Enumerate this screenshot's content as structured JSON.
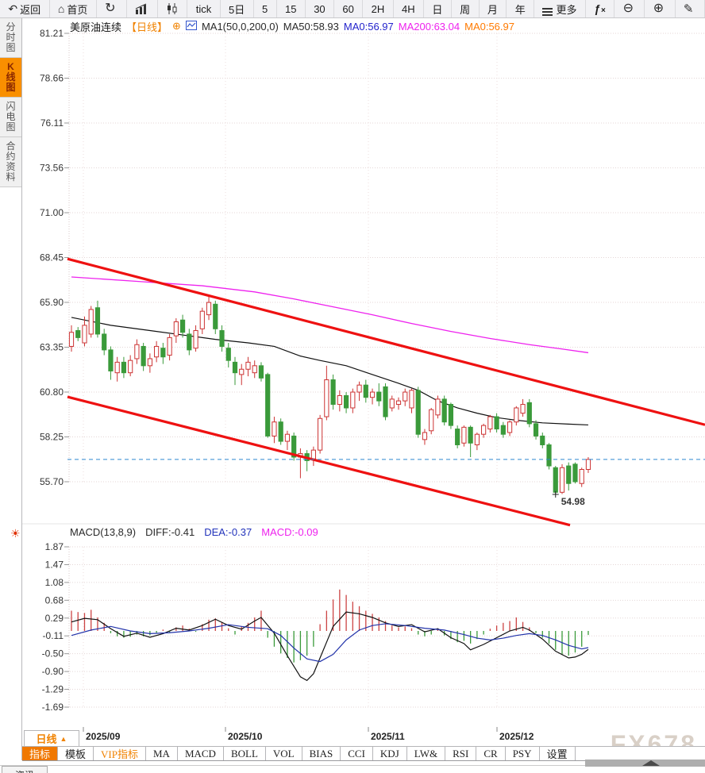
{
  "toolbar": {
    "items": [
      {
        "name": "back-button",
        "icon": "back-arrow-icon",
        "label": "返回"
      },
      {
        "name": "home-button",
        "icon": "home-icon",
        "label": "首页"
      },
      {
        "name": "refresh-button",
        "icon": "refresh-icon",
        "label": ""
      },
      {
        "name": "bar-chart-view-button",
        "icon": "bar-chart-icon",
        "label": ""
      },
      {
        "name": "candle-chart-view-button",
        "icon": "candle-chart-icon",
        "label": ""
      },
      {
        "name": "interval-tick",
        "icon": "",
        "label": "tick"
      },
      {
        "name": "interval-5day",
        "icon": "",
        "label": "5日"
      },
      {
        "name": "interval-5",
        "icon": "",
        "label": "5"
      },
      {
        "name": "interval-15",
        "icon": "",
        "label": "15"
      },
      {
        "name": "interval-30",
        "icon": "",
        "label": "30"
      },
      {
        "name": "interval-60",
        "icon": "",
        "label": "60"
      },
      {
        "name": "interval-2h",
        "icon": "",
        "label": "2H"
      },
      {
        "name": "interval-4h",
        "icon": "",
        "label": "4H"
      },
      {
        "name": "interval-day",
        "icon": "",
        "label": "日"
      },
      {
        "name": "interval-week",
        "icon": "",
        "label": "周"
      },
      {
        "name": "interval-month",
        "icon": "",
        "label": "月"
      },
      {
        "name": "interval-year",
        "icon": "",
        "label": "年"
      },
      {
        "name": "more-button",
        "icon": "menu-icon",
        "label": "更多"
      },
      {
        "name": "fx-indicator-button",
        "icon": "fx-icon",
        "label": ""
      },
      {
        "name": "zoom-out-button",
        "icon": "zoom-out-icon",
        "label": ""
      },
      {
        "name": "zoom-in-button",
        "icon": "zoom-in-icon",
        "label": ""
      },
      {
        "name": "draw-button",
        "icon": "pen-icon",
        "label": ""
      }
    ]
  },
  "sidebar": {
    "items": [
      {
        "label": "分时图",
        "active": false
      },
      {
        "label": "K线图",
        "active": true
      },
      {
        "label": "闪电图",
        "active": false
      },
      {
        "label": "合约资料",
        "active": false
      }
    ]
  },
  "chart_header": {
    "symbol": "美原油连续",
    "period_tag": "【日线】",
    "add_icon": "⊕",
    "ma_config": "MA1(50,0,200,0)",
    "ma50": "MA50:58.93",
    "ma0_blue": "MA0:56.97",
    "ma200": "MA200:63.04",
    "ma0_orange": "MA0:56.97"
  },
  "macd_header": {
    "title": "MACD(13,8,9)",
    "diff": "DIFF:-0.41",
    "dea": "DEA:-0.37",
    "macd": "MACD:-0.09"
  },
  "bottom": {
    "period_selector": "日线",
    "period_arrow": "▲",
    "tabs": [
      {
        "label": "指标",
        "active": true,
        "vip": false
      },
      {
        "label": "模板",
        "active": false,
        "vip": false
      },
      {
        "label": "VIP指标",
        "active": false,
        "vip": true
      },
      {
        "label": "MA",
        "active": false,
        "vip": false
      },
      {
        "label": "MACD",
        "active": false,
        "vip": false
      },
      {
        "label": "BOLL",
        "active": false,
        "vip": false
      },
      {
        "label": "VOL",
        "active": false,
        "vip": false
      },
      {
        "label": "BIAS",
        "active": false,
        "vip": false
      },
      {
        "label": "CCI",
        "active": false,
        "vip": false
      },
      {
        "label": "KDJ",
        "active": false,
        "vip": false
      },
      {
        "label": "LW&",
        "active": false,
        "vip": false
      },
      {
        "label": "RSI",
        "active": false,
        "vip": false
      },
      {
        "label": "CR",
        "active": false,
        "vip": false
      },
      {
        "label": "PSY",
        "active": false,
        "vip": false
      },
      {
        "label": "设置",
        "active": false,
        "vip": false
      }
    ],
    "partial_tab": "资讯",
    "watermark": "FX678"
  },
  "colors": {
    "up": "#cc3333",
    "down": "#3a9a3a",
    "ma50": "#111111",
    "ma200": "#ee22ee",
    "diff": "#111111",
    "dea": "#2233aa",
    "hist_pos": "#cc4444",
    "hist_neg": "#3a9a3a",
    "trend": "#ee1111",
    "price_line": "#2f86d0",
    "accent": "#f07800",
    "grid": "#e4d6d6",
    "grid_vert": "#ecdede",
    "axis_text": "#333333",
    "low_label": "#3a9a3a"
  },
  "chart_data": {
    "type": "candlestick+macd",
    "title": "美原油连续 日线 (US Crude Oil Continuous, Daily)",
    "y_ticks": [
      81.21,
      78.66,
      76.11,
      73.56,
      71.0,
      68.45,
      65.9,
      63.35,
      60.8,
      58.25,
      55.7
    ],
    "x_labels": [
      "2025/09",
      "2025/10",
      "2025/11",
      "2025/12"
    ],
    "current_price": 56.97,
    "low_marker": 54.98,
    "low_label": "54.98",
    "candles": [
      [
        63.4,
        64.6,
        63.1,
        64.2
      ],
      [
        64.3,
        64.5,
        63.7,
        63.9
      ],
      [
        63.6,
        65.1,
        63.4,
        64.6
      ],
      [
        64.1,
        65.7,
        63.9,
        65.5
      ],
      [
        65.6,
        66.0,
        63.9,
        64.1
      ],
      [
        64.1,
        64.4,
        62.9,
        63.2
      ],
      [
        63.2,
        63.4,
        61.5,
        62.0
      ],
      [
        61.9,
        62.8,
        61.4,
        62.5
      ],
      [
        62.5,
        62.8,
        61.6,
        61.9
      ],
      [
        61.9,
        62.9,
        61.7,
        62.6
      ],
      [
        62.7,
        63.8,
        62.4,
        63.5
      ],
      [
        63.4,
        63.6,
        62.0,
        62.3
      ],
      [
        62.3,
        63.0,
        61.9,
        62.7
      ],
      [
        62.8,
        63.7,
        62.5,
        63.4
      ],
      [
        63.3,
        63.6,
        62.4,
        62.8
      ],
      [
        62.9,
        64.1,
        62.6,
        63.9
      ],
      [
        64.0,
        65.0,
        63.6,
        64.8
      ],
      [
        64.9,
        65.2,
        63.9,
        64.2
      ],
      [
        64.1,
        64.4,
        62.9,
        63.2
      ],
      [
        63.3,
        64.6,
        63.1,
        64.3
      ],
      [
        64.4,
        65.6,
        64.1,
        65.4
      ],
      [
        65.2,
        66.3,
        64.9,
        65.9
      ],
      [
        65.8,
        66.0,
        64.1,
        64.4
      ],
      [
        64.3,
        64.6,
        63.1,
        63.4
      ],
      [
        63.3,
        63.6,
        62.2,
        62.6
      ],
      [
        62.5,
        62.8,
        61.2,
        61.9
      ],
      [
        61.8,
        62.4,
        61.2,
        62.1
      ],
      [
        62.1,
        62.8,
        61.7,
        62.5
      ],
      [
        61.9,
        62.6,
        61.6,
        62.3
      ],
      [
        62.3,
        62.5,
        61.4,
        61.6
      ],
      [
        61.8,
        61.9,
        58.2,
        58.3
      ],
      [
        58.3,
        59.4,
        57.9,
        59.1
      ],
      [
        59.1,
        59.3,
        57.8,
        58.0
      ],
      [
        58.0,
        58.6,
        57.5,
        58.4
      ],
      [
        58.3,
        58.5,
        56.9,
        57.1
      ],
      [
        57.1,
        57.6,
        55.9,
        57.3
      ],
      [
        57.3,
        57.5,
        56.3,
        56.9
      ],
      [
        57.0,
        57.7,
        56.6,
        57.5
      ],
      [
        57.5,
        59.5,
        57.3,
        59.3
      ],
      [
        59.4,
        62.3,
        59.2,
        61.5
      ],
      [
        61.5,
        61.8,
        59.8,
        60.1
      ],
      [
        60.1,
        60.9,
        59.7,
        60.6
      ],
      [
        60.6,
        60.8,
        59.6,
        59.9
      ],
      [
        59.9,
        61.0,
        59.6,
        60.8
      ],
      [
        60.8,
        61.4,
        60.3,
        61.2
      ],
      [
        61.2,
        61.5,
        60.2,
        60.5
      ],
      [
        60.5,
        61.0,
        60.1,
        60.8
      ],
      [
        60.8,
        61.3,
        60.0,
        60.3
      ],
      [
        61.1,
        61.3,
        59.2,
        59.4
      ],
      [
        59.9,
        60.6,
        59.7,
        60.4
      ],
      [
        60.1,
        60.5,
        59.8,
        60.3
      ],
      [
        60.3,
        61.0,
        60.0,
        60.8
      ],
      [
        59.9,
        61.0,
        59.6,
        60.9
      ],
      [
        60.9,
        61.1,
        58.2,
        58.4
      ],
      [
        58.1,
        58.7,
        57.8,
        58.5
      ],
      [
        58.6,
        59.9,
        58.4,
        59.8
      ],
      [
        59.5,
        60.6,
        59.3,
        60.4
      ],
      [
        60.4,
        60.6,
        58.9,
        59.1
      ],
      [
        60.1,
        60.2,
        58.7,
        58.9
      ],
      [
        58.7,
        58.9,
        57.6,
        57.8
      ],
      [
        57.9,
        58.9,
        57.7,
        58.8
      ],
      [
        58.8,
        58.9,
        57.1,
        57.9
      ],
      [
        57.8,
        58.5,
        57.5,
        58.4
      ],
      [
        58.4,
        59.0,
        58.2,
        58.9
      ],
      [
        58.7,
        59.5,
        58.5,
        59.4
      ],
      [
        59.4,
        59.6,
        58.5,
        58.7
      ],
      [
        58.9,
        59.1,
        58.2,
        58.4
      ],
      [
        58.5,
        59.2,
        58.3,
        59.1
      ],
      [
        59.1,
        60.0,
        58.9,
        59.9
      ],
      [
        59.6,
        60.4,
        59.4,
        60.1
      ],
      [
        60.2,
        60.4,
        58.8,
        59.0
      ],
      [
        59.0,
        59.2,
        58.1,
        58.3
      ],
      [
        58.3,
        58.5,
        57.6,
        57.8
      ],
      [
        57.8,
        57.9,
        56.4,
        56.6
      ],
      [
        56.5,
        56.6,
        54.98,
        55.1
      ],
      [
        55.1,
        56.7,
        55.0,
        56.5
      ],
      [
        56.6,
        56.8,
        55.2,
        55.6
      ],
      [
        56.7,
        56.8,
        55.6,
        55.7
      ],
      [
        55.6,
        56.5,
        55.4,
        56.4
      ],
      [
        56.4,
        57.1,
        56.2,
        56.97
      ]
    ],
    "ma50_points": [
      [
        0,
        65.05
      ],
      [
        6,
        64.6
      ],
      [
        12,
        64.3
      ],
      [
        18,
        64.0
      ],
      [
        22,
        63.8
      ],
      [
        27,
        63.6
      ],
      [
        31,
        63.4
      ],
      [
        35,
        62.85
      ],
      [
        38,
        62.6
      ],
      [
        42,
        62.3
      ],
      [
        46,
        61.8
      ],
      [
        50,
        61.3
      ],
      [
        53,
        60.9
      ],
      [
        56,
        60.3
      ],
      [
        59,
        59.9
      ],
      [
        62,
        59.6
      ],
      [
        65,
        59.35
      ],
      [
        68,
        59.2
      ],
      [
        72,
        59.05
      ],
      [
        76,
        58.98
      ],
      [
        79,
        58.93
      ]
    ],
    "ma200_points": [
      [
        0,
        67.35
      ],
      [
        10,
        67.1
      ],
      [
        20,
        66.85
      ],
      [
        28,
        66.5
      ],
      [
        34,
        66.1
      ],
      [
        40,
        65.65
      ],
      [
        46,
        65.2
      ],
      [
        52,
        64.7
      ],
      [
        58,
        64.25
      ],
      [
        64,
        63.85
      ],
      [
        70,
        63.5
      ],
      [
        75,
        63.25
      ],
      [
        79,
        63.04
      ]
    ],
    "trendlines": [
      {
        "x1": 85,
        "p1": 68.38,
        "x2": 888,
        "p2": 58.94
      },
      {
        "x1": 85,
        "p1": 60.53,
        "x2": 718,
        "p2": 53.23
      }
    ],
    "macd": {
      "params": "13,8,9",
      "diff_last": -0.41,
      "dea_last": -0.37,
      "hist_last": -0.09,
      "y_ticks": [
        1.87,
        1.47,
        1.08,
        0.68,
        0.29,
        -0.11,
        -0.5,
        -0.9,
        -1.29,
        -1.69
      ],
      "hist": [
        0.45,
        0.42,
        0.4,
        0.47,
        0.3,
        0.18,
        -0.05,
        -0.12,
        -0.15,
        -0.13,
        -0.08,
        -0.12,
        -0.1,
        -0.04,
        0.03,
        -0.03,
        0.08,
        0.12,
        0.05,
        -0.02,
        0.15,
        0.25,
        0.28,
        0.2,
        0.06,
        -0.08,
        0.1,
        0.18,
        0.3,
        0.45,
        -0.15,
        -0.35,
        -0.5,
        -0.6,
        -0.7,
        -0.65,
        -0.55,
        -0.35,
        0.15,
        0.45,
        0.7,
        0.92,
        0.8,
        0.65,
        0.55,
        0.45,
        0.38,
        0.3,
        0.22,
        0.12,
        0.08,
        0.1,
        0.06,
        -0.08,
        -0.12,
        -0.08,
        0.05,
        -0.1,
        -0.18,
        -0.25,
        -0.22,
        -0.28,
        -0.18,
        -0.08,
        0.05,
        0.12,
        0.18,
        0.22,
        0.3,
        0.2,
        0.08,
        -0.05,
        -0.15,
        -0.28,
        -0.42,
        -0.52,
        -0.55,
        -0.48,
        -0.35,
        -0.09
      ],
      "diff_points": [
        [
          0,
          0.2
        ],
        [
          2,
          0.28
        ],
        [
          4,
          0.25
        ],
        [
          6,
          0.05
        ],
        [
          8,
          -0.12
        ],
        [
          10,
          -0.05
        ],
        [
          12,
          -0.14
        ],
        [
          14,
          -0.06
        ],
        [
          16,
          0.06
        ],
        [
          18,
          0.02
        ],
        [
          20,
          0.12
        ],
        [
          22,
          0.26
        ],
        [
          24,
          0.12
        ],
        [
          26,
          0.04
        ],
        [
          28,
          0.22
        ],
        [
          29,
          0.3
        ],
        [
          31,
          -0.05
        ],
        [
          33,
          -0.55
        ],
        [
          35,
          -1.02
        ],
        [
          36,
          -1.1
        ],
        [
          37,
          -0.95
        ],
        [
          38,
          -0.6
        ],
        [
          39,
          -0.25
        ],
        [
          40,
          0.1
        ],
        [
          42,
          0.42
        ],
        [
          44,
          0.38
        ],
        [
          46,
          0.3
        ],
        [
          48,
          0.18
        ],
        [
          50,
          0.1
        ],
        [
          52,
          0.14
        ],
        [
          54,
          -0.02
        ],
        [
          56,
          0.05
        ],
        [
          58,
          -0.15
        ],
        [
          60,
          -0.28
        ],
        [
          61,
          -0.42
        ],
        [
          63,
          -0.3
        ],
        [
          65,
          -0.15
        ],
        [
          67,
          0.0
        ],
        [
          69,
          0.08
        ],
        [
          70,
          0.02
        ],
        [
          72,
          -0.18
        ],
        [
          74,
          -0.45
        ],
        [
          76,
          -0.6
        ],
        [
          77,
          -0.58
        ],
        [
          78,
          -0.52
        ],
        [
          79,
          -0.41
        ]
      ],
      "dea_points": [
        [
          0,
          -0.1
        ],
        [
          3,
          0.02
        ],
        [
          6,
          0.1
        ],
        [
          9,
          0.0
        ],
        [
          12,
          -0.06
        ],
        [
          15,
          -0.04
        ],
        [
          18,
          0.0
        ],
        [
          21,
          0.06
        ],
        [
          24,
          0.14
        ],
        [
          27,
          0.08
        ],
        [
          30,
          0.05
        ],
        [
          32,
          -0.1
        ],
        [
          34,
          -0.38
        ],
        [
          36,
          -0.62
        ],
        [
          38,
          -0.68
        ],
        [
          40,
          -0.52
        ],
        [
          42,
          -0.2
        ],
        [
          44,
          0.02
        ],
        [
          46,
          0.12
        ],
        [
          48,
          0.16
        ],
        [
          51,
          0.12
        ],
        [
          54,
          0.06
        ],
        [
          57,
          0.02
        ],
        [
          60,
          -0.08
        ],
        [
          62,
          -0.16
        ],
        [
          64,
          -0.2
        ],
        [
          66,
          -0.16
        ],
        [
          68,
          -0.1
        ],
        [
          70,
          -0.06
        ],
        [
          72,
          -0.1
        ],
        [
          74,
          -0.2
        ],
        [
          76,
          -0.32
        ],
        [
          78,
          -0.4
        ],
        [
          79,
          -0.37
        ]
      ]
    }
  }
}
